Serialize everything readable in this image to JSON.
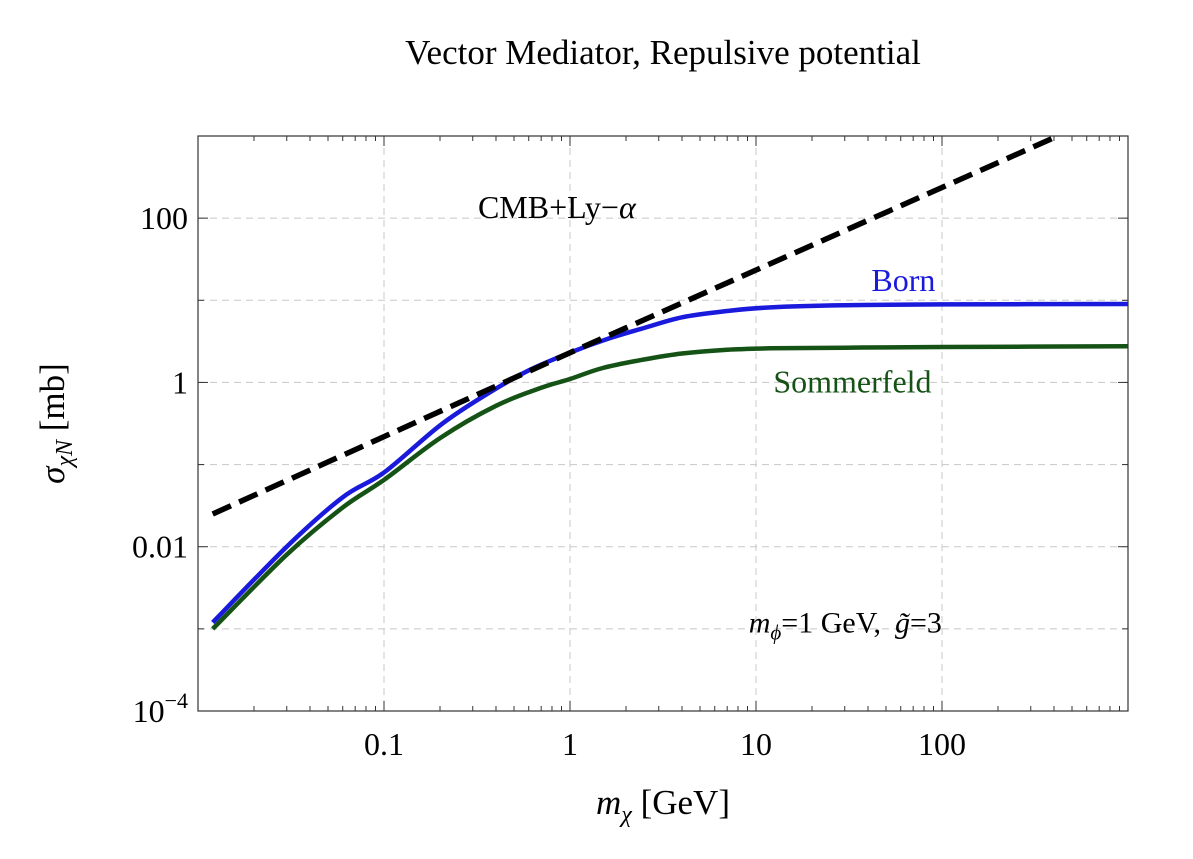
{
  "chart_data": {
    "type": "line",
    "title": "Vector Mediator,  Repulsive potential",
    "xlabel": {
      "main": "m",
      "sub": "χ",
      "unit": " [GeV]"
    },
    "ylabel": {
      "main": "σ",
      "sub": "χN",
      "unit": " [mb]"
    },
    "x_scale": "log",
    "y_scale": "log",
    "xlim": [
      0.01,
      1000
    ],
    "ylim": [
      0.0001,
      1000
    ],
    "grid": true,
    "x_ticks": [
      {
        "value": 0.1,
        "label": "0.1"
      },
      {
        "value": 1,
        "label": "1"
      },
      {
        "value": 10,
        "label": "10"
      },
      {
        "value": 100,
        "label": "100"
      }
    ],
    "y_ticks": [
      {
        "value": 0.0001,
        "label_base": "10",
        "label_exp": "−4"
      },
      {
        "value": 0.01,
        "label_base": "0.01",
        "label_exp": ""
      },
      {
        "value": 1,
        "label_base": "1",
        "label_exp": ""
      },
      {
        "value": 100,
        "label_base": "100",
        "label_exp": ""
      }
    ],
    "series": [
      {
        "name": "CMB+Ly−α",
        "color": "#000000",
        "style": "dashed",
        "x": [
          0.012,
          1,
          420
        ],
        "y": [
          0.025,
          2.3,
          1000
        ]
      },
      {
        "name": "Born",
        "color": "#1a1adc",
        "style": "solid",
        "x": [
          0.012,
          0.03,
          0.06,
          0.1,
          0.2,
          0.35,
          0.6,
          1,
          1.6,
          2.5,
          4,
          7,
          12,
          30,
          100,
          1000
        ],
        "y": [
          0.0012,
          0.01,
          0.04,
          0.08,
          0.3,
          0.7,
          1.4,
          2.3,
          3.4,
          4.6,
          6.2,
          7.4,
          8.2,
          8.7,
          8.9,
          9.0
        ]
      },
      {
        "name": "Sommerfeld",
        "color": "#155215",
        "style": "solid",
        "x": [
          0.012,
          0.03,
          0.06,
          0.1,
          0.2,
          0.4,
          0.7,
          1,
          1.5,
          2.5,
          4,
          7,
          12,
          30,
          100,
          1000
        ],
        "y": [
          0.001,
          0.008,
          0.03,
          0.065,
          0.21,
          0.52,
          0.86,
          1.1,
          1.5,
          1.9,
          2.25,
          2.5,
          2.6,
          2.65,
          2.7,
          2.75
        ]
      }
    ],
    "annotations": [
      {
        "text": "CMB+Ly−",
        "italic_tail": "α",
        "x": 0.85,
        "y": 100,
        "color": "#000000"
      },
      {
        "text": "Born",
        "x": 62,
        "y": 13,
        "color": "#1a1adc"
      },
      {
        "text": "Sommerfeld",
        "x": 33,
        "y": 0.75,
        "color": "#155215"
      }
    ],
    "param_label": {
      "m_main": "m",
      "m_sub": "ϕ",
      "m_value": "=1 GeV,",
      "g_main": "g̃",
      "g_value": "=3",
      "x": 15,
      "y": 0.0012
    }
  }
}
